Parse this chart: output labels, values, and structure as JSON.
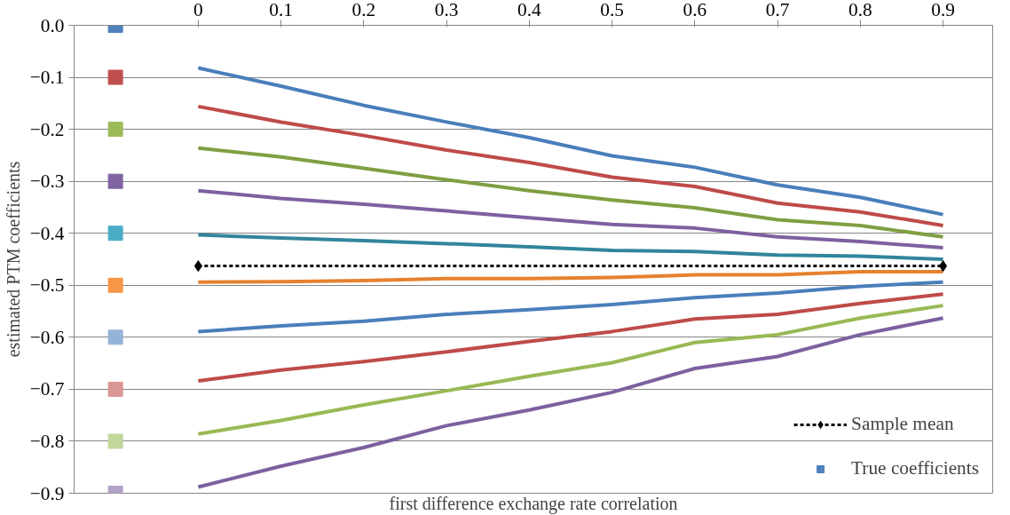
{
  "chart_data": {
    "type": "line",
    "xlabel": "first difference exchange rate correlation",
    "ylabel": "estimated PTM coefficients",
    "xlim": [
      -0.15,
      0.96
    ],
    "xticks": [
      0,
      0.1,
      0.2,
      0.3,
      0.4,
      0.5,
      0.6,
      0.7,
      0.8,
      0.9
    ],
    "ylim": [
      -0.9,
      0
    ],
    "yticks": [
      {
        "value": 0,
        "label": "0.0"
      },
      -0.1,
      -0.2,
      -0.3,
      -0.4,
      -0.5,
      -0.6,
      -0.7,
      -0.8,
      -0.9
    ],
    "grid": "y",
    "legend": "bottom right",
    "x": [
      0,
      0.1,
      0.2,
      0.3,
      0.4,
      0.5,
      0.6,
      0.7,
      0.8,
      0.9
    ],
    "series": [
      {
        "color": "#4a7ebb",
        "values": [
          -0.082,
          -0.117,
          -0.154,
          -0.186,
          -0.216,
          -0.251,
          -0.273,
          -0.307,
          -0.331,
          -0.364
        ]
      },
      {
        "color": "#be4b48",
        "values": [
          -0.156,
          -0.186,
          -0.212,
          -0.24,
          -0.264,
          -0.292,
          -0.31,
          -0.342,
          -0.359,
          -0.385
        ]
      },
      {
        "color": "#7f9f43",
        "values": [
          -0.236,
          -0.253,
          -0.275,
          -0.297,
          -0.318,
          -0.336,
          -0.351,
          -0.374,
          -0.385,
          -0.407
        ]
      },
      {
        "color": "#7d60a0",
        "values": [
          -0.318,
          -0.333,
          -0.344,
          -0.357,
          -0.37,
          -0.383,
          -0.39,
          -0.407,
          -0.416,
          -0.428
        ]
      },
      {
        "color": "#31859c",
        "values": [
          -0.403,
          -0.409,
          -0.414,
          -0.42,
          -0.426,
          -0.433,
          -0.435,
          -0.442,
          -0.444,
          -0.45
        ]
      },
      {
        "color": "#e6812f",
        "values": [
          -0.494,
          -0.493,
          -0.491,
          -0.487,
          -0.487,
          -0.485,
          -0.48,
          -0.48,
          -0.474,
          -0.474
        ]
      },
      {
        "color": "#4a7ebb",
        "values": [
          -0.589,
          -0.578,
          -0.569,
          -0.556,
          -0.547,
          -0.537,
          -0.524,
          -0.515,
          -0.502,
          -0.494
        ]
      },
      {
        "color": "#be4b48",
        "values": [
          -0.684,
          -0.663,
          -0.647,
          -0.628,
          -0.608,
          -0.589,
          -0.565,
          -0.556,
          -0.535,
          -0.517
        ]
      },
      {
        "color": "#98b954",
        "values": [
          -0.786,
          -0.76,
          -0.73,
          -0.703,
          -0.675,
          -0.649,
          -0.61,
          -0.595,
          -0.563,
          -0.539
        ]
      },
      {
        "color": "#7d60a0",
        "values": [
          -0.888,
          -0.848,
          -0.812,
          -0.77,
          -0.74,
          -0.706,
          -0.66,
          -0.637,
          -0.595,
          -0.563
        ]
      },
      {
        "name": "Sample mean",
        "color": "#000000",
        "x": [
          0,
          0.9
        ],
        "values": [
          -0.463,
          -0.463
        ],
        "line_style": "dashed",
        "marker": "diamond"
      },
      {
        "name": "True coefficients",
        "type": "scatter",
        "marker": "square",
        "x": [
          -0.1,
          -0.1,
          -0.1,
          -0.1,
          -0.1,
          -0.1,
          -0.1,
          -0.1,
          -0.1,
          -0.1
        ],
        "values": [
          0,
          -0.1,
          -0.2,
          -0.3,
          -0.4,
          -0.5,
          -0.6,
          -0.7,
          -0.8,
          -0.9
        ],
        "colors": [
          "#4f81bd",
          "#c0504d",
          "#9bbb59",
          "#8064a2",
          "#4bacc6",
          "#f79646",
          "#95b3d7",
          "#d99694",
          "#c3d69b",
          "#b3a2c7"
        ]
      }
    ]
  }
}
